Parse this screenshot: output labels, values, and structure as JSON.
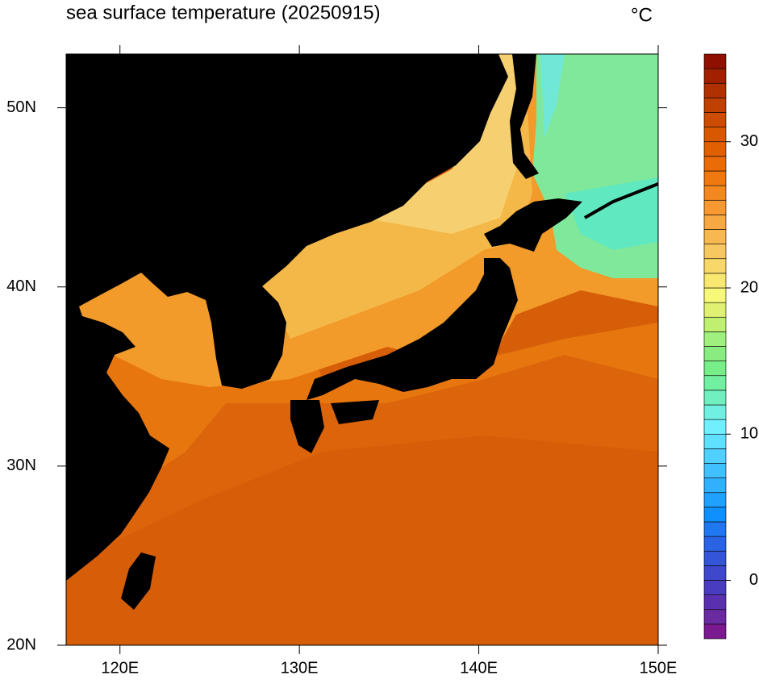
{
  "chart_data": {
    "type": "map",
    "title": "sea surface temperature (20250915)",
    "units": "°C",
    "xlim": [
      117,
      150
    ],
    "ylim": [
      20,
      53
    ],
    "xticks": [
      {
        "value": 120,
        "label": "120E"
      },
      {
        "value": 130,
        "label": "130E"
      },
      {
        "value": 140,
        "label": "140E"
      },
      {
        "value": 150,
        "label": "150E"
      }
    ],
    "yticks": [
      {
        "value": 20,
        "label": "20N"
      },
      {
        "value": 30,
        "label": "30N"
      },
      {
        "value": 40,
        "label": "40N"
      },
      {
        "value": 50,
        "label": "50N"
      }
    ],
    "colorbar": {
      "lim": [
        -4,
        36
      ],
      "step": 1,
      "ticks": [
        0,
        10,
        20,
        30
      ],
      "colors": [
        "#7b1a90",
        "#6a2aa0",
        "#5a30b0",
        "#4a3cc0",
        "#3f48cc",
        "#3455d8",
        "#2a64e4",
        "#1f78f0",
        "#1090ff",
        "#20a0ff",
        "#30b0ff",
        "#40c0ff",
        "#50d0ff",
        "#60e0ff",
        "#70f0ff",
        "#70f0e0",
        "#70f0c0",
        "#70f0a0",
        "#78ee88",
        "#88ec80",
        "#a0f080",
        "#c0f070",
        "#e0f070",
        "#f8f878",
        "#f8e870",
        "#f8d868",
        "#f8c860",
        "#f8b850",
        "#f8a840",
        "#f89830",
        "#f48820",
        "#f07810",
        "#ea6c08",
        "#e06000",
        "#d85800",
        "#cc4c00",
        "#c04000",
        "#b03000",
        "#a02000",
        "#901000"
      ]
    }
  }
}
